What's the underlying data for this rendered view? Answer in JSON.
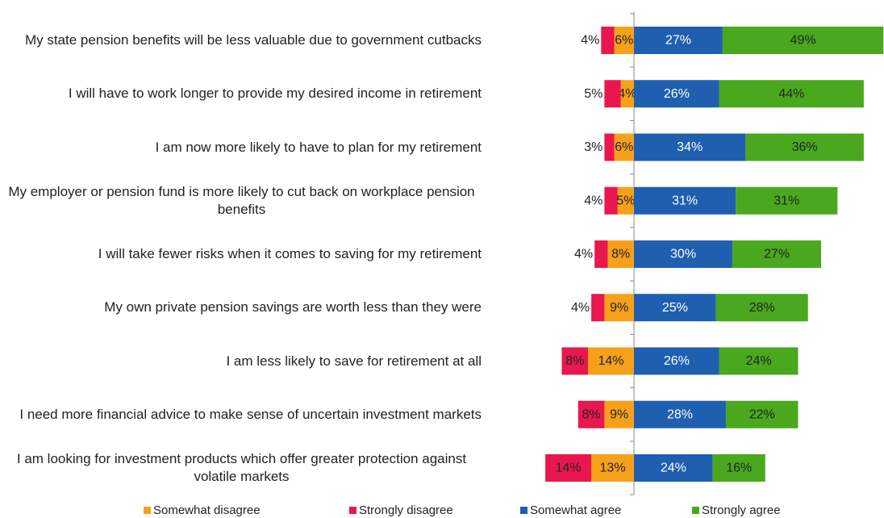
{
  "chart_data": {
    "type": "diverging_bar",
    "categories": [
      "My state pension benefits will be less valuable due to government cutbacks",
      "I will have to work longer to provide my desired income in retirement",
      "I am now more likely to have to plan for my retirement",
      "My employer or pension fund is more likely to cut back on workplace pension benefits",
      "I will take fewer risks when it comes to saving for my retirement",
      "My own private pension savings are worth less than they were",
      "I am less likely to save for retirement at all",
      "I need more financial advice to make sense of uncertain investment markets",
      "I am looking for investment products which offer greater protection against volatile markets"
    ],
    "series": [
      {
        "name": "Somewhat disagree",
        "color": "#f7a11a",
        "values": [
          6,
          4,
          6,
          5,
          8,
          9,
          14,
          9,
          13
        ],
        "value_labels": [
          "6%",
          "4%",
          "6%",
          "5%",
          "8%",
          "9%",
          "14%",
          "9%",
          "13%"
        ]
      },
      {
        "name": "Strongly disagree",
        "color": "#e8174f",
        "values": [
          4,
          5,
          3,
          4,
          4,
          4,
          8,
          8,
          14
        ],
        "value_labels": [
          "4%",
          "5%",
          "3%",
          "4%",
          "4%",
          "4%",
          "8%",
          "8%",
          "14%"
        ]
      },
      {
        "name": "Somewhat agree",
        "color": "#1f5fb0",
        "values": [
          27,
          26,
          34,
          31,
          30,
          25,
          26,
          28,
          24
        ],
        "value_labels": [
          "27%",
          "26%",
          "34%",
          "31%",
          "30%",
          "25%",
          "26%",
          "28%",
          "24%"
        ]
      },
      {
        "name": "Strongly agree",
        "color": "#4aa81e",
        "values": [
          49,
          44,
          36,
          31,
          27,
          28,
          24,
          22,
          16
        ],
        "value_labels": [
          "49%",
          "44%",
          "36%",
          "31%",
          "27%",
          "28%",
          "24%",
          "22%",
          "16%"
        ]
      }
    ],
    "legend": "bottom"
  }
}
